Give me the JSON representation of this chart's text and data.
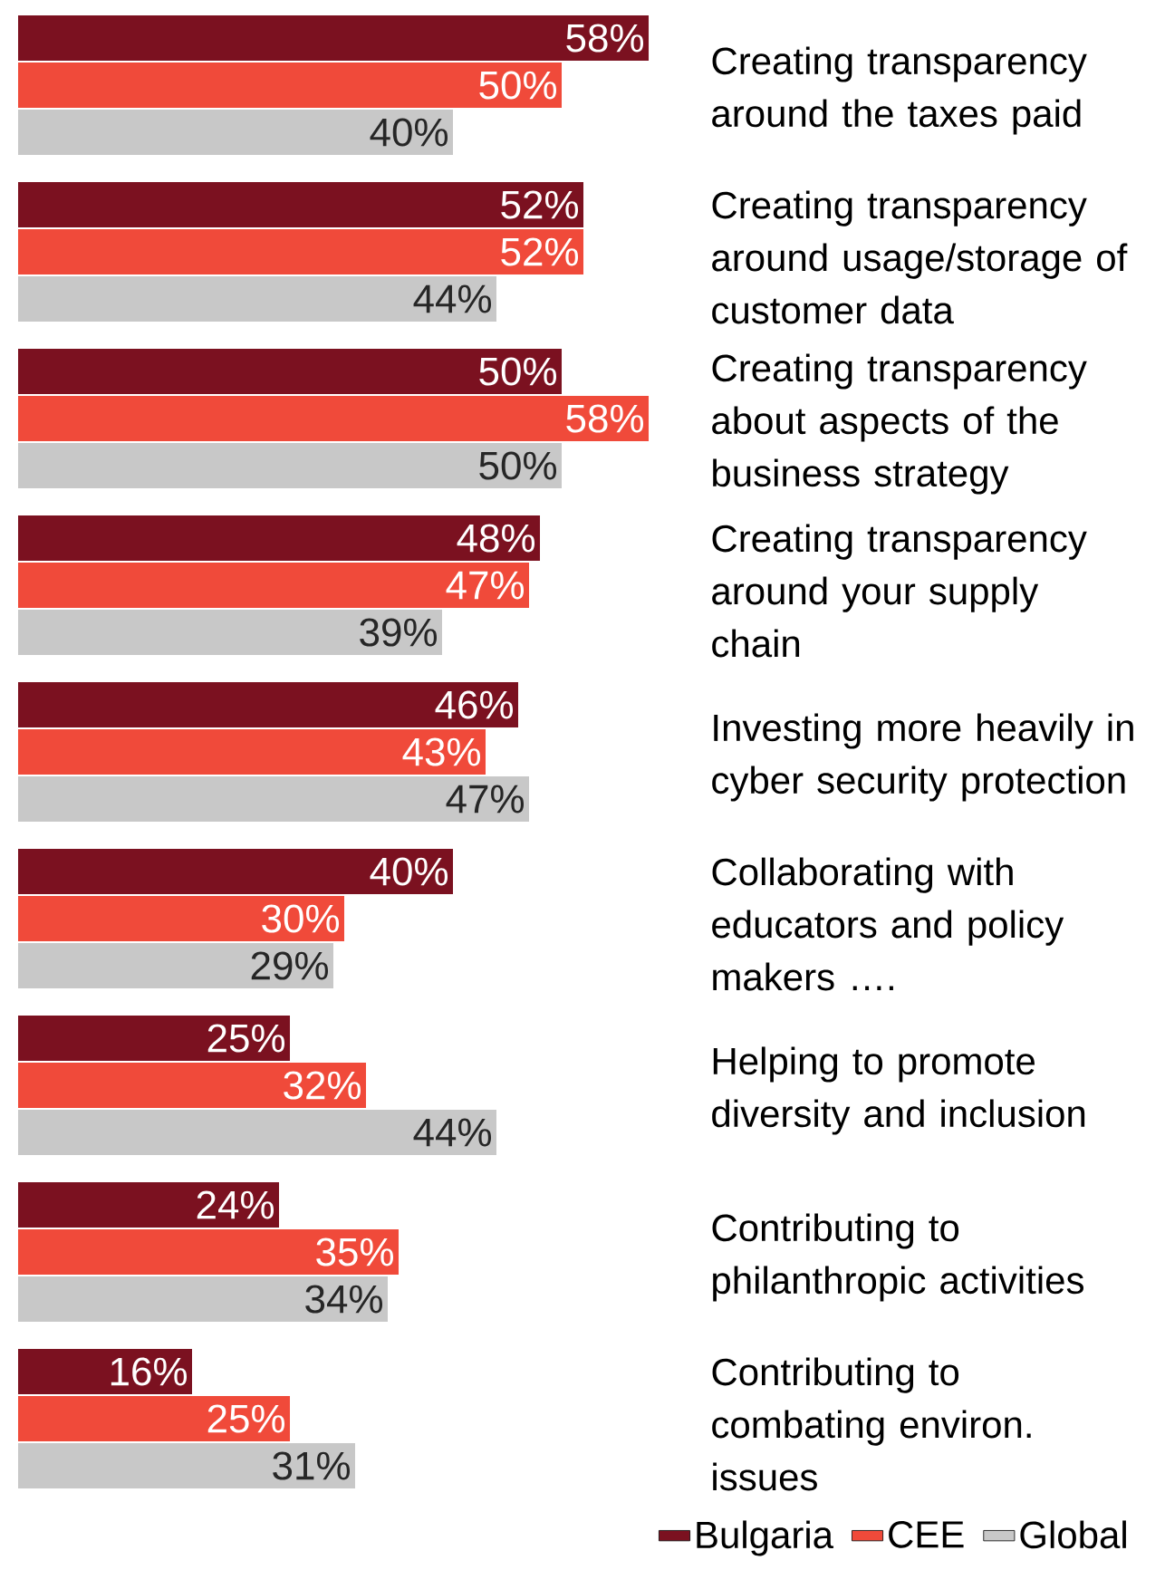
{
  "chart_data": {
    "type": "bar",
    "orientation": "horizontal",
    "legend": "bottom right",
    "categories": [
      "Creating transparency around the taxes paid",
      "Creating transparency around usage/storage of customer data",
      "Creating transparency about aspects of the business strategy",
      "Creating transparency around your supply chain",
      "Investing more heavily in cyber security protection",
      "Collaborating with educators and policy makers ….",
      "Helping to promote diversity and inclusion",
      "Contributing to philanthropic activities",
      "Contributing to combating environ. issues"
    ],
    "series": [
      {
        "name": "Bulgaria",
        "color": "#7b1120",
        "values": [
          58,
          52,
          50,
          48,
          46,
          40,
          25,
          24,
          16
        ],
        "value_labels": [
          "58%",
          "52%",
          "50%",
          "48%",
          "46%",
          "40%",
          "25%",
          "24%",
          "16%"
        ]
      },
      {
        "name": "CEE",
        "color": "#f04a3a",
        "values": [
          50,
          52,
          58,
          47,
          43,
          30,
          32,
          35,
          25
        ],
        "value_labels": [
          "50%",
          "52%",
          "58%",
          "47%",
          "43%",
          "30%",
          "32%",
          "35%",
          "25%"
        ]
      },
      {
        "name": "Global",
        "color": "#c8c8c8",
        "values": [
          40,
          44,
          50,
          39,
          47,
          29,
          44,
          34,
          31
        ],
        "value_labels": [
          "40%",
          "44%",
          "50%",
          "39%",
          "47%",
          "29%",
          "44%",
          "34%",
          "31%"
        ]
      }
    ]
  }
}
